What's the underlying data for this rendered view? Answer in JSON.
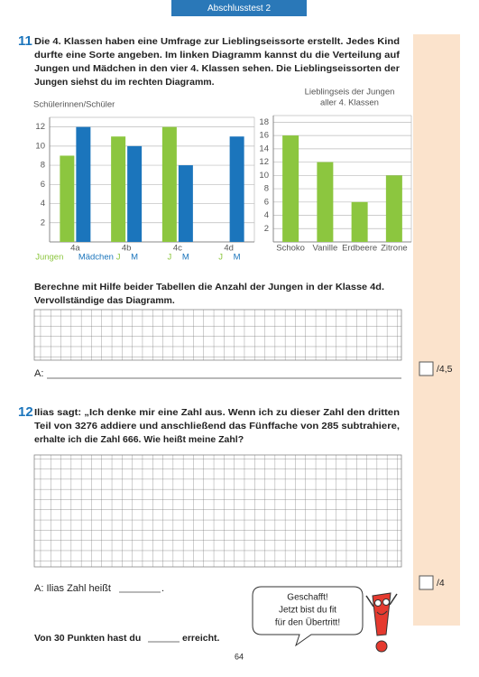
{
  "header": "Abschlusstest 2",
  "tasks": [
    {
      "number": "11",
      "lines": [
        "Die 4. Klassen haben eine Umfrage zur Lieblingseissorte erstellt. Jedes Kind",
        "durfte eine Sorte angeben. Im linken Diagramm kannst du die Verteilung auf",
        "Jungen und Mädchen in den vier 4. Klassen sehen. Die Lieblingseissorten der",
        "Jungen siehst du im rechten Diagramm."
      ]
    },
    {
      "number": "12",
      "lines": [
        "Ilias sagt: „Ich denke mir eine Zahl aus. Wenn ich zu dieser Zahl den dritten",
        "Teil von 3276 addiere und anschließend das Fünffache von 285 subtrahiere,",
        "erhalte ich die Zahl 666. Wie heißt meine Zahl?"
      ]
    }
  ],
  "chart_data": [
    {
      "type": "bar",
      "y_label": "Schülerinnen/Schüler",
      "categories": [
        "4a",
        "4b",
        "4c",
        "4d"
      ],
      "sublabels": [
        "J",
        "M"
      ],
      "series": [
        {
          "name": "Jungen",
          "color": "#8cc63f",
          "values": [
            9,
            11,
            12,
            null
          ]
        },
        {
          "name": "Mädchen",
          "color": "#1b75bc",
          "values": [
            12,
            10,
            8,
            11
          ]
        }
      ],
      "ylim": [
        0,
        13
      ],
      "yticks": [
        2,
        4,
        6,
        8,
        10,
        12
      ],
      "grid": true
    },
    {
      "type": "bar",
      "title": [
        "Lieblingseis der Jungen",
        "aller 4. Klassen"
      ],
      "categories": [
        "Schoko",
        "Vanille",
        "Erdbeere",
        "Zitrone"
      ],
      "values": [
        16,
        12,
        6,
        10
      ],
      "color": "#8cc63f",
      "ylim": [
        0,
        19
      ],
      "yticks": [
        2,
        4,
        6,
        8,
        10,
        12,
        14,
        16,
        18
      ],
      "grid": true
    }
  ],
  "instruction_11": [
    "Berechne mit Hilfe beider Tabellen die Anzahl der Jungen in der Klasse 4d.",
    "Vervollständige das Diagramm."
  ],
  "answer_11": "A:",
  "score_11": "/4,5",
  "answer_12": "A: Ilias Zahl heißt",
  "answer_12_end": ".",
  "score_12": "/4",
  "bubble": [
    "Geschafft!",
    "Jetzt bist du fit",
    "für den Übertritt!"
  ],
  "footer_prefix": "Von 30 Punkten hast du",
  "footer_suffix": "erreicht.",
  "page_number": "64"
}
